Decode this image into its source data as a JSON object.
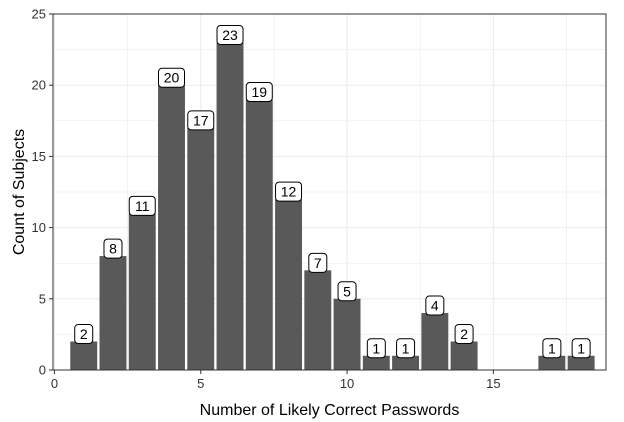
{
  "chart_data": {
    "type": "bar",
    "title": "",
    "xlabel": "Number of Likely Correct Passwords",
    "ylabel": "Count of Subjects",
    "x": [
      1,
      2,
      3,
      4,
      5,
      6,
      7,
      8,
      9,
      10,
      11,
      12,
      13,
      14,
      17,
      18
    ],
    "values": [
      2,
      8,
      11,
      20,
      17,
      23,
      19,
      12,
      7,
      5,
      1,
      1,
      4,
      2,
      1,
      1
    ],
    "xlim": [
      -0.05,
      18.85
    ],
    "ylim": [
      0,
      25
    ],
    "xticks": [
      0,
      5,
      10,
      15
    ],
    "yticks": [
      0,
      5,
      10,
      15,
      20,
      25
    ],
    "grid": true,
    "bar_color": "#595959",
    "label_border_color": "#000000",
    "panel_border_color": "#333333",
    "grid_color": "#ebebeb"
  }
}
